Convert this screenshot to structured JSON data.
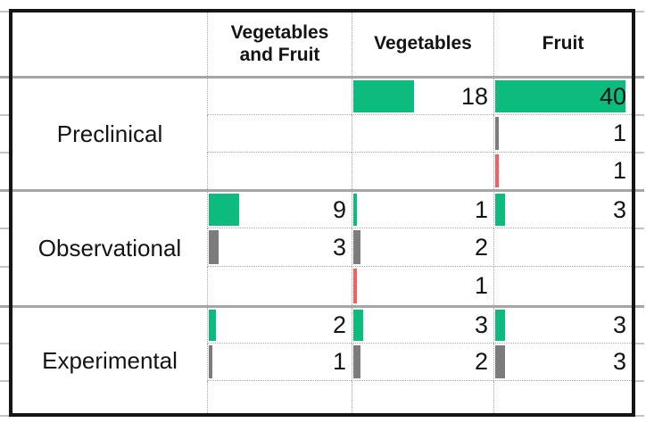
{
  "colors": {
    "green": "#0cbb7d",
    "gray": "#7c7c7c",
    "red": "#f15f5f",
    "grid_solid": "#a6a6a6",
    "grid_dotted": "#a8a8a8",
    "border": "#151515"
  },
  "header": {
    "corner": "",
    "columns": [
      "Vegetables\nand Fruit",
      "Vegetables",
      "Fruit"
    ]
  },
  "chart_data": {
    "type": "bar",
    "orientation": "horizontal",
    "title": "",
    "columns": [
      "Vegetables and Fruit",
      "Vegetables",
      "Fruit"
    ],
    "bar_scale_max": 40,
    "legend": "none",
    "groups": [
      {
        "label": "Preclinical",
        "rows": [
          {
            "tone": "green",
            "values": [
              null,
              18,
              40
            ]
          },
          {
            "tone": "gray",
            "values": [
              null,
              null,
              1
            ]
          },
          {
            "tone": "red",
            "values": [
              null,
              null,
              1
            ]
          }
        ]
      },
      {
        "label": "Observational",
        "rows": [
          {
            "tone": "green",
            "values": [
              9,
              1,
              3
            ]
          },
          {
            "tone": "gray",
            "values": [
              3,
              2,
              null
            ]
          },
          {
            "tone": "red",
            "values": [
              null,
              1,
              null
            ]
          }
        ]
      },
      {
        "label": "Experimental",
        "rows": [
          {
            "tone": "green",
            "values": [
              2,
              3,
              3
            ]
          },
          {
            "tone": "gray",
            "values": [
              1,
              2,
              3
            ]
          },
          {
            "tone": "red",
            "values": [
              null,
              null,
              null
            ]
          }
        ]
      }
    ]
  }
}
